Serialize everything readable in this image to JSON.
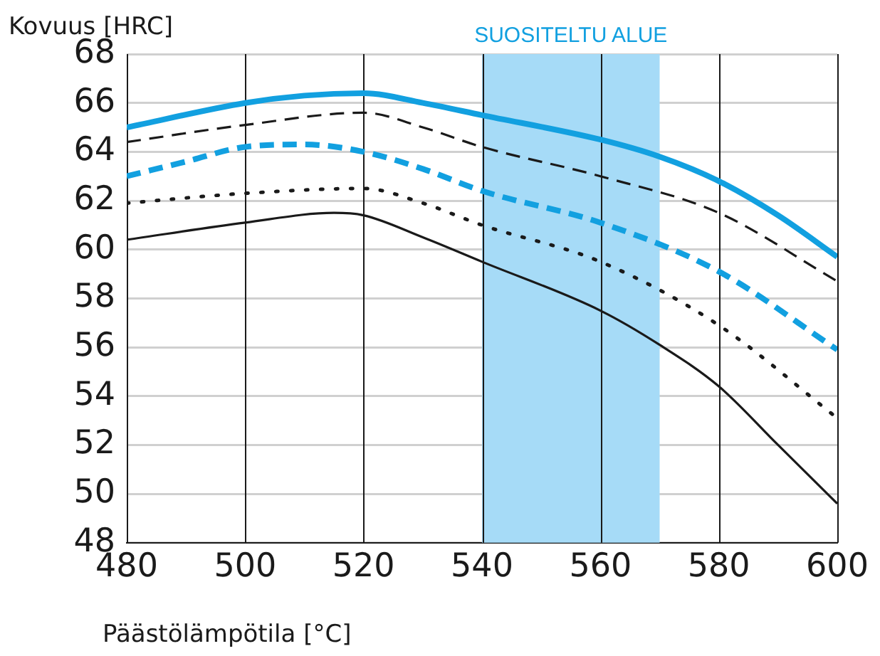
{
  "chart_data": {
    "type": "line",
    "ylabel": "Kovuus [HRC]",
    "xlabel": "Päästölämpötila [°C]",
    "xlim": [
      480,
      600
    ],
    "xticks": [
      480,
      500,
      520,
      540,
      560,
      580,
      600
    ],
    "ylim": [
      48,
      68
    ],
    "yticks": [
      48,
      50,
      52,
      54,
      56,
      58,
      60,
      62,
      64,
      66,
      68
    ],
    "grid": true,
    "marker": "none",
    "bands": [
      {
        "axis": "x",
        "from": 540,
        "to": 570,
        "label": "SUOSITELTU ALUE",
        "color": "#a6dbf7"
      }
    ],
    "series": [
      {
        "color": "#12a0e0",
        "line_style": "solid",
        "x": [
          480,
          500,
          510,
          520,
          530,
          540,
          560,
          570,
          580,
          590,
          600
        ],
        "values": [
          65.0,
          66.0,
          66.3,
          66.4,
          66.0,
          65.5,
          64.5,
          63.8,
          62.8,
          61.4,
          59.7
        ]
      },
      {
        "color": "#1a1a1a",
        "line_style": "dashed",
        "x": [
          480,
          500,
          520,
          530,
          540,
          560,
          580,
          600
        ],
        "values": [
          64.4,
          65.1,
          65.6,
          65.0,
          64.2,
          63.0,
          61.5,
          58.7
        ]
      },
      {
        "color": "#12a0e0",
        "line_style": "dashed",
        "x": [
          480,
          490,
          500,
          510,
          520,
          530,
          540,
          560,
          580,
          600
        ],
        "values": [
          63.0,
          63.6,
          64.2,
          64.3,
          64.0,
          63.3,
          62.4,
          61.1,
          59.1,
          55.9
        ]
      },
      {
        "color": "#1a1a1a",
        "line_style": "dotted",
        "x": [
          480,
          500,
          520,
          530,
          540,
          560,
          580,
          600
        ],
        "values": [
          61.9,
          62.3,
          62.5,
          61.9,
          61.0,
          59.5,
          56.9,
          53.1
        ]
      },
      {
        "color": "#1a1a1a",
        "line_style": "solid",
        "x": [
          480,
          500,
          515,
          520,
          530,
          540,
          560,
          570,
          580,
          590,
          600
        ],
        "values": [
          60.4,
          61.1,
          61.5,
          61.4,
          60.5,
          59.5,
          57.5,
          56.1,
          54.4,
          52.0,
          49.6
        ]
      }
    ]
  }
}
